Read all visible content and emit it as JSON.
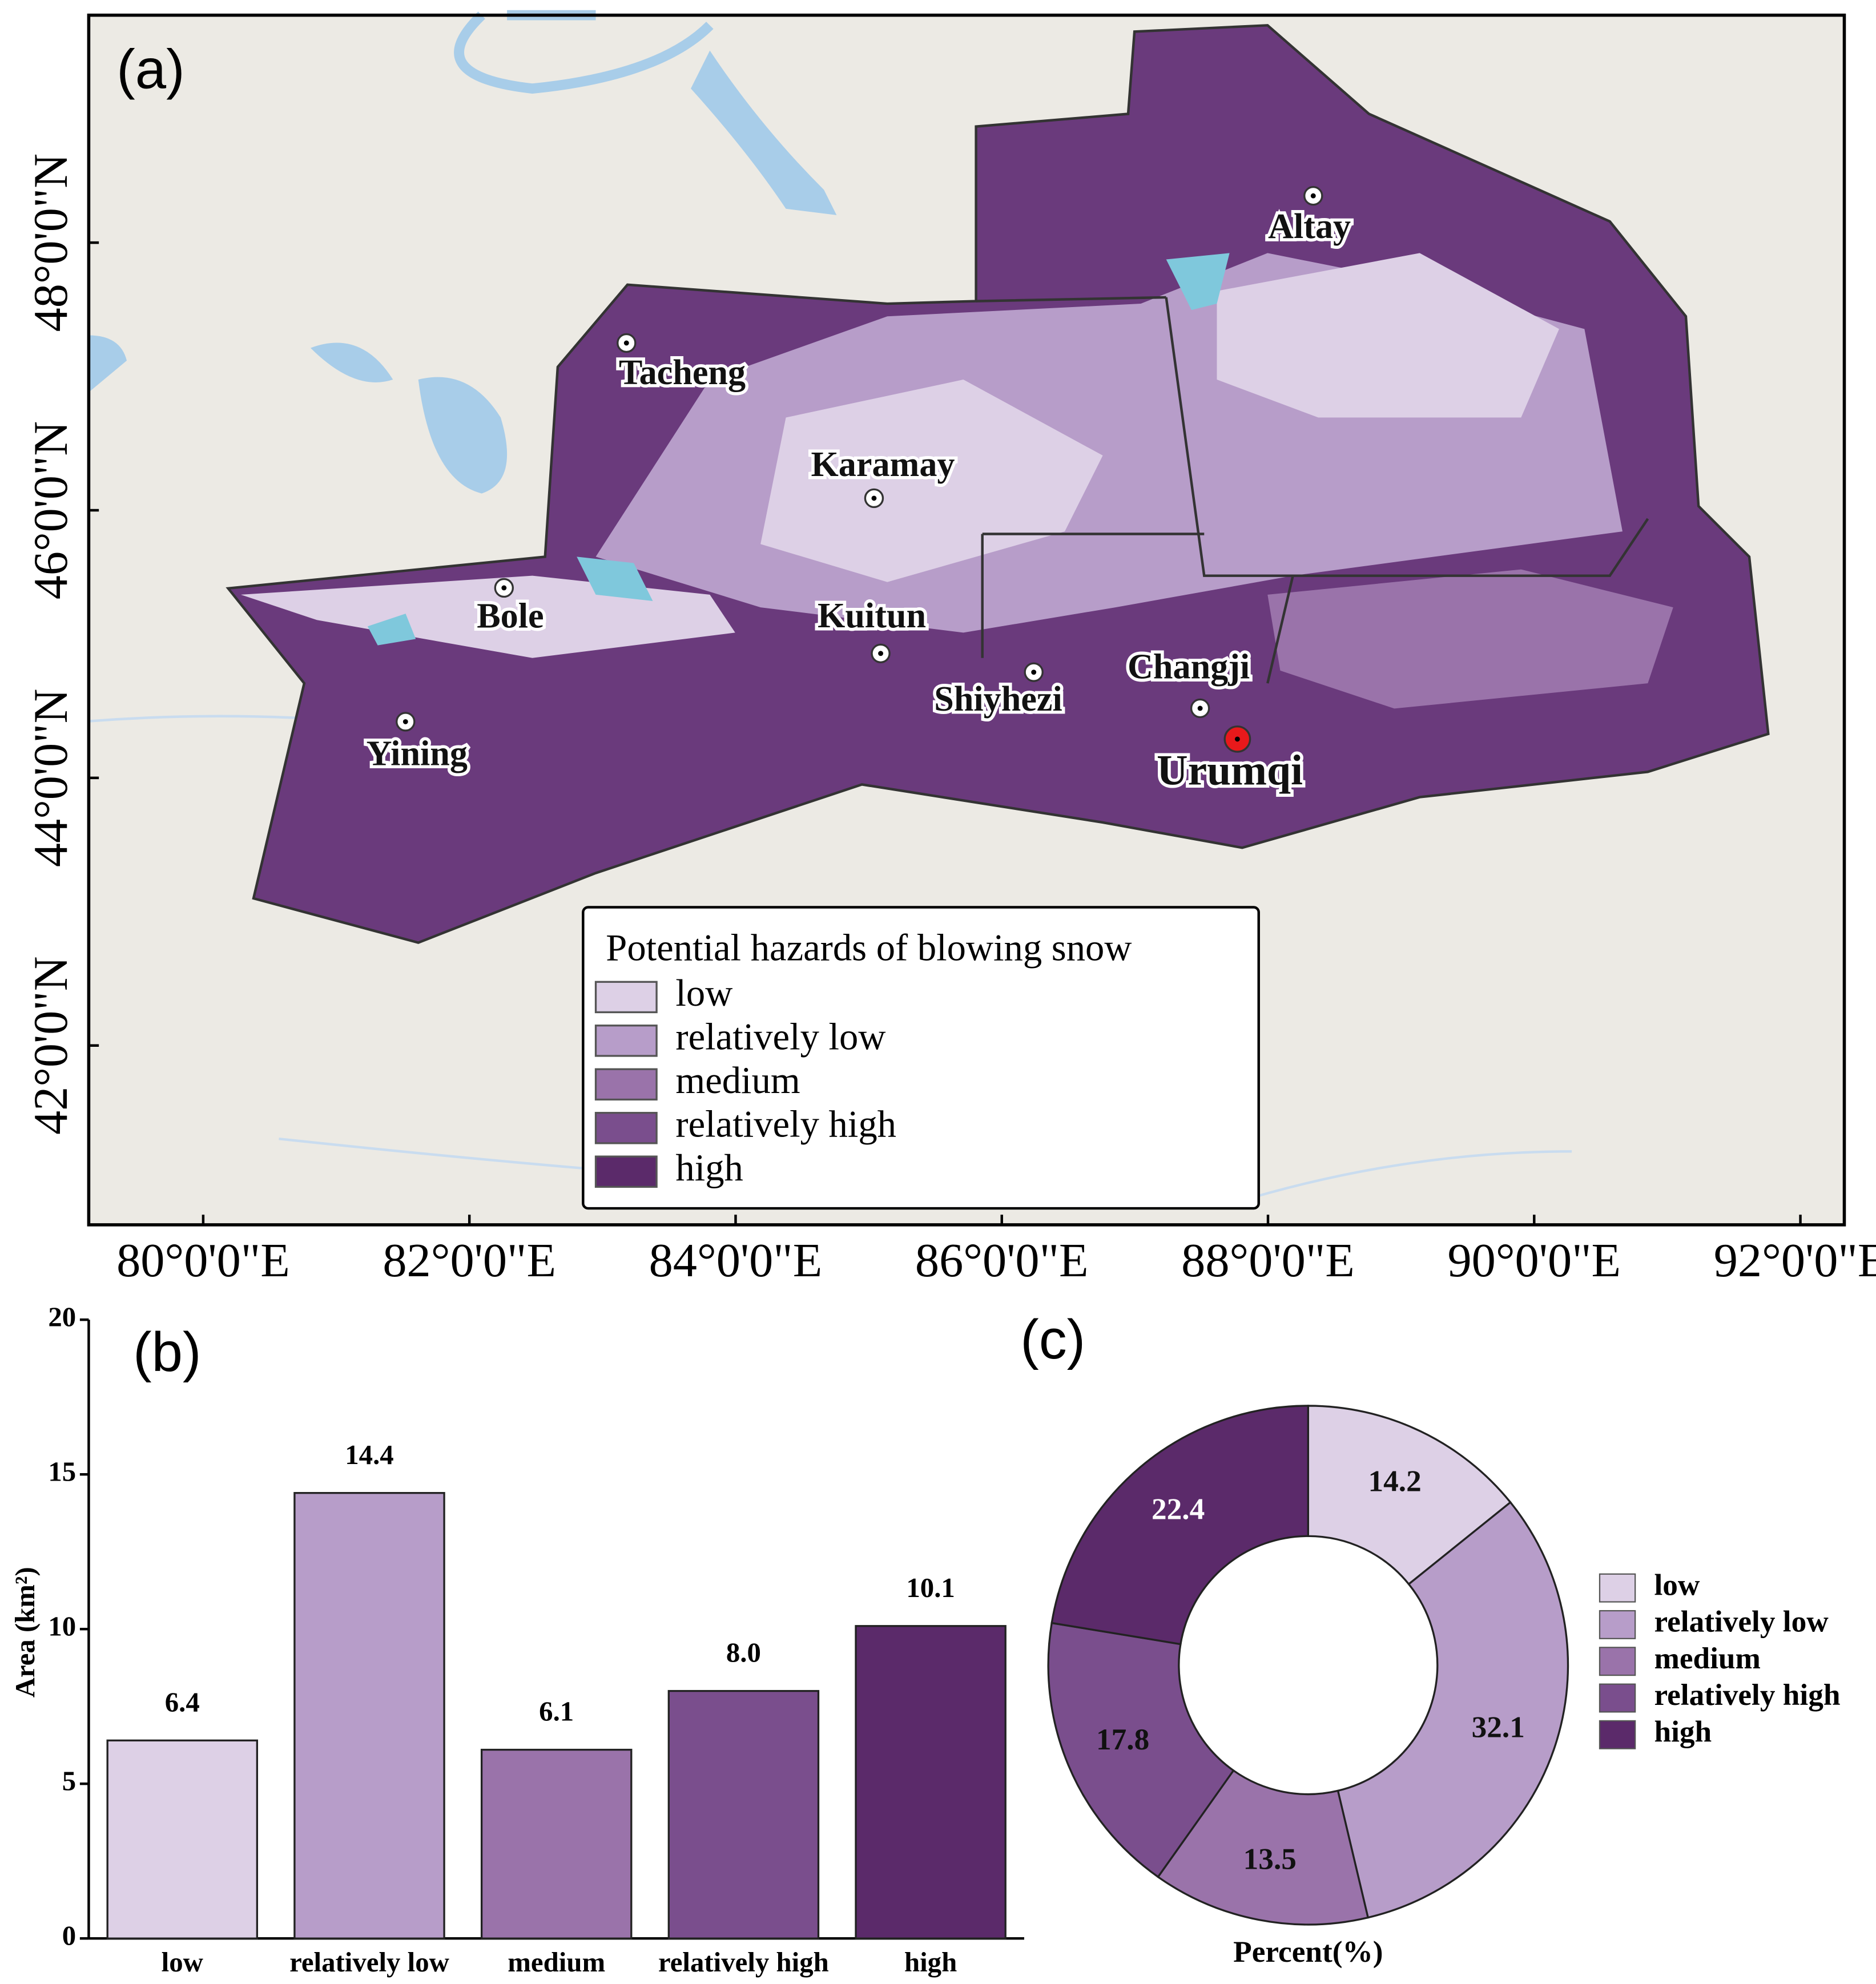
{
  "chart_data": [
    {
      "type": "map",
      "panel_label": "(a)",
      "xlim": [
        79.14,
        92.33
      ],
      "ylim": [
        40.66,
        49.7
      ],
      "xticks": [
        {
          "value": 80,
          "label": "80°0'0\"E"
        },
        {
          "value": 82,
          "label": "82°0'0\"E"
        },
        {
          "value": 84,
          "label": "84°0'0\"E"
        },
        {
          "value": 86,
          "label": "86°0'0\"E"
        },
        {
          "value": 88,
          "label": "88°0'0\"E"
        },
        {
          "value": 90,
          "label": "90°0'0\"E"
        },
        {
          "value": 92,
          "label": "92°0'0\"E"
        }
      ],
      "yticks": [
        {
          "value": 42,
          "label": "42°0'0\"N"
        },
        {
          "value": 44,
          "label": "44°0'0\"N"
        },
        {
          "value": 46,
          "label": "46°0'0\"N"
        },
        {
          "value": 48,
          "label": "48°0'0\"N"
        }
      ],
      "points": [
        {
          "name": "Altay",
          "lon": 88.34,
          "lat": 48.35,
          "color": "#ffffff"
        },
        {
          "name": "Tacheng",
          "lon": 83.18,
          "lat": 47.25,
          "color": "#ffffff"
        },
        {
          "name": "Karamay",
          "lon": 85.04,
          "lat": 46.09,
          "color": "#ffffff"
        },
        {
          "name": "Kuitun",
          "lon": 85.09,
          "lat": 44.93,
          "color": "#ffffff"
        },
        {
          "name": "Bole",
          "lon": 82.26,
          "lat": 45.42,
          "color": "#ffffff"
        },
        {
          "name": "Shiyhezi",
          "lon": 86.24,
          "lat": 44.79,
          "color": "#ffffff"
        },
        {
          "name": "Changji",
          "lon": 87.49,
          "lat": 44.52,
          "color": "#ffffff"
        },
        {
          "name": "Yining",
          "lon": 81.52,
          "lat": 44.42,
          "color": "#ffffff"
        },
        {
          "name": "Urumqi",
          "lon": 87.77,
          "lat": 44.29,
          "color": "#e8191b"
        }
      ],
      "legend_title": "Potential hazards of blowing snow",
      "series": [
        {
          "name": "low",
          "color": "#ddd0e6"
        },
        {
          "name": "relatively low",
          "color": "#b79dc9"
        },
        {
          "name": "medium",
          "color": "#9a73aa"
        },
        {
          "name": "relatively high",
          "color": "#7a4e8d"
        },
        {
          "name": "high",
          "color": "#5b2a6a"
        }
      ]
    },
    {
      "type": "bar",
      "panel_label": "(b)",
      "ylabel": "Area (km²)",
      "categories": [
        "low",
        "relatively low",
        "medium",
        "relatively high",
        "high"
      ],
      "values": [
        6.4,
        14.4,
        6.1,
        8.0,
        10.1
      ],
      "value_labels": [
        "6.4",
        "14.4",
        "6.1",
        "8.0",
        "10.1"
      ],
      "colors": [
        "#ddd0e6",
        "#b79dc9",
        "#9a73aa",
        "#7a4e8d",
        "#5b2a6a"
      ],
      "ylim": [
        0,
        20
      ],
      "yticks": [
        0,
        5,
        10,
        15,
        20
      ]
    },
    {
      "type": "pie",
      "panel_label": "(c)",
      "xlabel": "Percent(%)",
      "donut": true,
      "categories": [
        "low",
        "relatively low",
        "medium",
        "relatively high",
        "high"
      ],
      "values": [
        14.2,
        32.1,
        13.5,
        17.8,
        22.4
      ],
      "colors": [
        "#ddd0e6",
        "#b79dc9",
        "#9a73aa",
        "#7a4e8d",
        "#5b2a6a"
      ]
    }
  ]
}
